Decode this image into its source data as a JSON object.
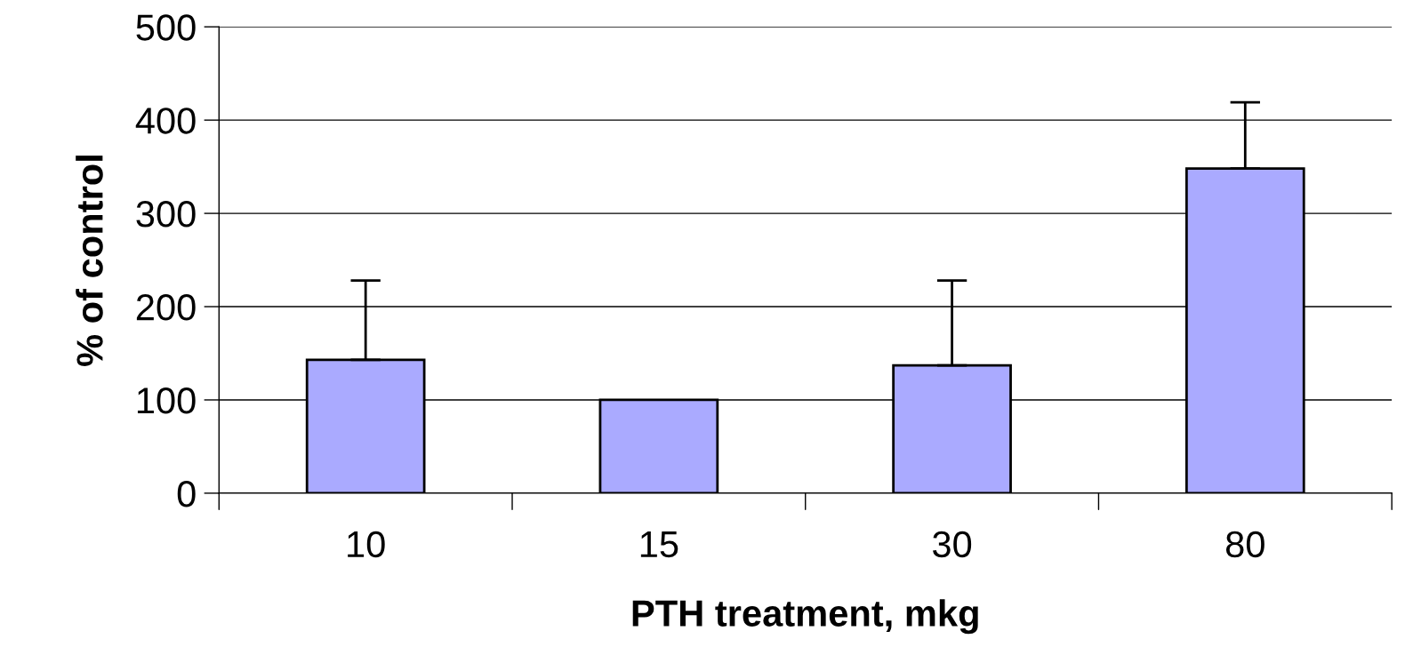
{
  "chart_data": {
    "type": "bar",
    "xlabel": "PTH treatment, mkg",
    "ylabel": "% of control",
    "categories": [
      "10",
      "15",
      "30",
      "80"
    ],
    "values": [
      143,
      100,
      137,
      348
    ],
    "errors": [
      [
        143,
        228
      ],
      null,
      [
        137,
        228
      ],
      [
        348,
        419
      ]
    ],
    "color": "#aaaaff",
    "ylim": [
      0,
      500
    ],
    "yticks": [
      0,
      100,
      200,
      300,
      400,
      500
    ],
    "grid": "y"
  }
}
